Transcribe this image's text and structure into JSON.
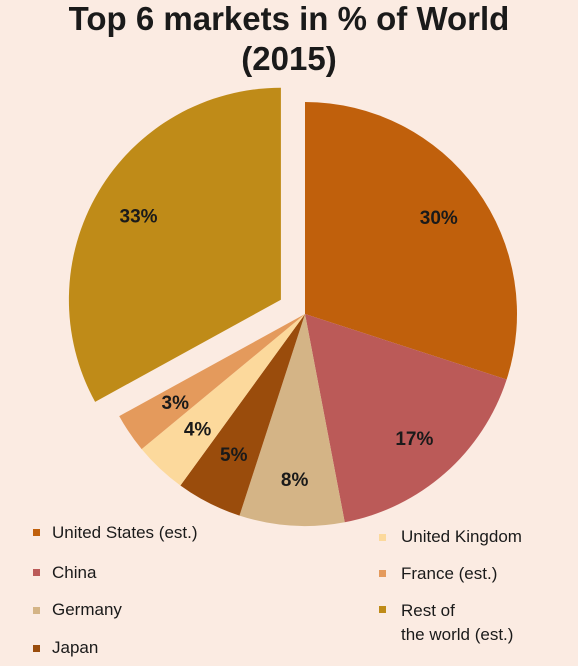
{
  "title_line1": "Top 6 markets in % of World",
  "title_line2": "(2015)",
  "chart_data": {
    "type": "pie",
    "title": "Top 6 markets in % of World (2015)",
    "slices": [
      {
        "name": "United States (est.)",
        "value": 30,
        "label": "30%",
        "color": "#c0600c"
      },
      {
        "name": "China",
        "value": 17,
        "label": "17%",
        "color": "#bb5a58"
      },
      {
        "name": "Germany",
        "value": 8,
        "label": "8%",
        "color": "#d4b486"
      },
      {
        "name": "Japan",
        "value": 5,
        "label": "5%",
        "color": "#9a4c0c"
      },
      {
        "name": "United Kingdom",
        "value": 4,
        "label": "4%",
        "color": "#fcd99c"
      },
      {
        "name": "France (est.)",
        "value": 3,
        "label": "3%",
        "color": "#e49a5c"
      },
      {
        "name": "Rest of the world (est.)",
        "value": 33,
        "label": "33%",
        "color": "#bf8b18",
        "exploded": true
      }
    ],
    "legend": {
      "left": [
        "United States (est.)",
        "China",
        "Germany",
        "Japan"
      ],
      "right": [
        "United Kingdom",
        "France (est.)",
        "Rest of|the world (est.)"
      ]
    }
  },
  "legend_labels": {
    "us": "United States (est.)",
    "china": "China",
    "germany": "Germany",
    "japan": "Japan",
    "uk": "United Kingdom",
    "france": "France (est.)",
    "rest_line1": "Rest of",
    "rest_line2": "the world (est.)"
  }
}
